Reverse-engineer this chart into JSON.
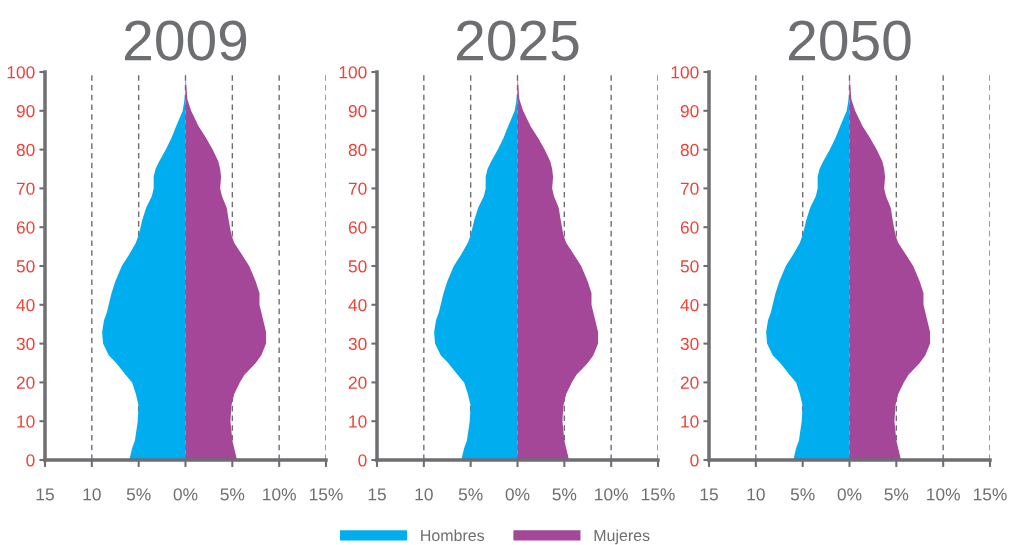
{
  "chart_data": [
    {
      "type": "area",
      "orientation": "horizontal",
      "title": "2009",
      "x": [
        0,
        3,
        5,
        10,
        14,
        17,
        20,
        22,
        25,
        27,
        30,
        33,
        36,
        38,
        40,
        43,
        46,
        50,
        53,
        56,
        58,
        62,
        65,
        68,
        70,
        73,
        75,
        77,
        80,
        83,
        86,
        90,
        93,
        96,
        100
      ],
      "series": [
        {
          "color": "#00aeef",
          "values": [
            -6.0,
            -5.7,
            -5.4,
            -5.1,
            -5.0,
            -5.3,
            -5.7,
            -6.4,
            -7.4,
            -8.2,
            -8.8,
            -8.9,
            -8.7,
            -8.4,
            -8.2,
            -7.9,
            -7.5,
            -6.8,
            -6.0,
            -5.3,
            -5.0,
            -4.6,
            -4.2,
            -3.6,
            -3.4,
            -3.4,
            -3.2,
            -2.8,
            -2.1,
            -1.5,
            -1.0,
            -0.3,
            -0.1,
            0,
            0
          ]
        },
        {
          "color": "#a54798",
          "values": [
            5.5,
            5.2,
            5.0,
            4.8,
            4.9,
            5.2,
            5.8,
            6.3,
            7.5,
            8.1,
            8.6,
            8.6,
            8.3,
            8.1,
            7.9,
            7.9,
            7.5,
            6.8,
            6.0,
            5.2,
            4.9,
            4.6,
            4.4,
            3.9,
            3.7,
            3.8,
            3.7,
            3.5,
            2.9,
            2.2,
            1.4,
            0.6,
            0.2,
            0.1,
            0
          ]
        }
      ],
      "xlim": [
        -15,
        15
      ],
      "xticks": [
        {
          "value": -15,
          "label": "15"
        },
        {
          "value": -10,
          "label": "10"
        },
        {
          "value": -5,
          "label": "5%"
        },
        {
          "value": 0,
          "label": "0%"
        },
        {
          "value": 5,
          "label": "5%"
        },
        {
          "value": 10,
          "label": "10%"
        },
        {
          "value": 15,
          "label": "15%"
        }
      ],
      "ylim": [
        0,
        100
      ],
      "yticks": [
        0,
        10,
        20,
        30,
        40,
        50,
        60,
        70,
        80,
        90,
        100
      ],
      "grid": "x"
    },
    {
      "type": "area",
      "orientation": "horizontal",
      "title": "2025",
      "x": [
        0,
        3,
        5,
        10,
        14,
        17,
        20,
        22,
        25,
        27,
        30,
        33,
        36,
        38,
        40,
        43,
        46,
        50,
        53,
        56,
        58,
        62,
        65,
        68,
        70,
        73,
        75,
        77,
        80,
        83,
        86,
        90,
        93,
        96,
        100
      ],
      "series": [
        {
          "name": "Hombres",
          "color": "#00aeef",
          "values": [
            -6.0,
            -5.7,
            -5.4,
            -5.1,
            -5.0,
            -5.3,
            -5.7,
            -6.4,
            -7.4,
            -8.2,
            -8.8,
            -8.9,
            -8.7,
            -8.4,
            -8.2,
            -7.9,
            -7.5,
            -6.8,
            -6.0,
            -5.3,
            -5.0,
            -4.6,
            -4.2,
            -3.6,
            -3.4,
            -3.4,
            -3.2,
            -2.8,
            -2.1,
            -1.5,
            -1.0,
            -0.3,
            -0.1,
            0,
            0
          ]
        },
        {
          "name": "Mujeres",
          "color": "#a54798",
          "values": [
            5.5,
            5.2,
            5.0,
            4.8,
            4.9,
            5.2,
            5.8,
            6.3,
            7.5,
            8.1,
            8.6,
            8.6,
            8.3,
            8.1,
            7.9,
            7.9,
            7.5,
            6.8,
            6.0,
            5.2,
            4.9,
            4.6,
            4.4,
            3.9,
            3.7,
            3.8,
            3.7,
            3.5,
            2.9,
            2.2,
            1.4,
            0.6,
            0.2,
            0.1,
            0
          ]
        }
      ],
      "xlim": [
        -15,
        15
      ],
      "xticks": [
        {
          "value": -15,
          "label": "15"
        },
        {
          "value": -10,
          "label": "10"
        },
        {
          "value": -5,
          "label": "5%"
        },
        {
          "value": 0,
          "label": "0%"
        },
        {
          "value": 5,
          "label": "5%"
        },
        {
          "value": 10,
          "label": "10%"
        },
        {
          "value": 15,
          "label": "15%"
        }
      ],
      "ylim": [
        0,
        100
      ],
      "yticks": [
        0,
        10,
        20,
        30,
        40,
        50,
        60,
        70,
        80,
        90,
        100
      ],
      "grid": "x",
      "legend": "bottom"
    },
    {
      "type": "area",
      "orientation": "horizontal",
      "title": "2050",
      "x": [
        0,
        3,
        5,
        10,
        14,
        17,
        20,
        22,
        25,
        27,
        30,
        33,
        36,
        38,
        40,
        43,
        46,
        50,
        53,
        56,
        58,
        62,
        65,
        68,
        70,
        73,
        75,
        77,
        80,
        83,
        86,
        90,
        93,
        96,
        100
      ],
      "series": [
        {
          "color": "#00aeef",
          "values": [
            -6.0,
            -5.7,
            -5.4,
            -5.1,
            -5.0,
            -5.3,
            -5.7,
            -6.4,
            -7.4,
            -8.2,
            -8.8,
            -8.9,
            -8.7,
            -8.4,
            -8.2,
            -7.9,
            -7.5,
            -6.8,
            -6.0,
            -5.3,
            -5.0,
            -4.6,
            -4.2,
            -3.6,
            -3.4,
            -3.4,
            -3.2,
            -2.8,
            -2.1,
            -1.5,
            -1.0,
            -0.3,
            -0.1,
            0,
            0
          ]
        },
        {
          "color": "#a54798",
          "values": [
            5.5,
            5.2,
            5.0,
            4.8,
            4.9,
            5.2,
            5.8,
            6.3,
            7.5,
            8.1,
            8.6,
            8.6,
            8.3,
            8.1,
            7.9,
            7.9,
            7.5,
            6.8,
            6.0,
            5.2,
            4.9,
            4.6,
            4.4,
            3.9,
            3.7,
            3.8,
            3.7,
            3.5,
            2.9,
            2.2,
            1.4,
            0.6,
            0.2,
            0.1,
            0
          ]
        }
      ],
      "xlim": [
        -15,
        15
      ],
      "xticks": [
        {
          "value": -15,
          "label": "15"
        },
        {
          "value": -10,
          "label": "10"
        },
        {
          "value": -5,
          "label": "5%"
        },
        {
          "value": 0,
          "label": "0%"
        },
        {
          "value": 5,
          "label": "5%"
        },
        {
          "value": 10,
          "label": "10%"
        },
        {
          "value": 15,
          "label": "15%"
        }
      ],
      "ylim": [
        0,
        100
      ],
      "yticks": [
        0,
        10,
        20,
        30,
        40,
        50,
        60,
        70,
        80,
        90,
        100
      ],
      "grid": "x"
    }
  ]
}
